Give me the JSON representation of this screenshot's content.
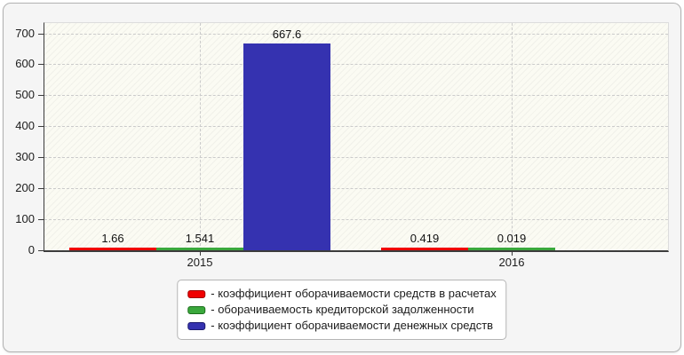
{
  "chart_data": {
    "type": "bar",
    "title": "",
    "categories": [
      "2015",
      "2016"
    ],
    "series": [
      {
        "name": "коэффициент оборачиваемости средств в расчетах",
        "color": "#f00000",
        "border_color": "#a00000",
        "values": [
          1.66,
          0.419
        ]
      },
      {
        "name": "оборачиваемость кредиторской задолженности",
        "color": "#3aa83c",
        "border_color": "#1c6e1c",
        "values": [
          1.541,
          0.019
        ]
      },
      {
        "name": "коэффициент оборачиваемости денежных средств",
        "color": "#3532b0",
        "border_color": "#1c1a6e",
        "values": [
          667.6,
          null
        ]
      }
    ],
    "value_labels": [
      [
        "1.66",
        "0.419"
      ],
      [
        "1.541",
        "0.019"
      ],
      [
        "667.6",
        null
      ]
    ],
    "y_ticks": [
      "0",
      "100",
      "200",
      "300",
      "400",
      "500",
      "600",
      "700"
    ],
    "ylim": [
      0,
      733
    ],
    "grid": true,
    "legend_position": "bottom",
    "legend": {
      "items": [
        {
          "label": "- коэффициент оборачиваемости средств в расчетах",
          "color": "#f00000",
          "border_color": "#a00000"
        },
        {
          "label": "- оборачиваемость кредиторской задолженности",
          "color": "#3aa83c",
          "border_color": "#1c6e1c"
        },
        {
          "label": "- коэффициент оборачиваемости денежных средств",
          "color": "#3532b0",
          "border_color": "#1c1a6e"
        }
      ]
    }
  }
}
